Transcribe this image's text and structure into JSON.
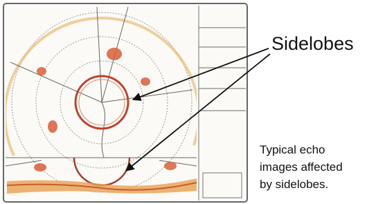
{
  "callout": {
    "label": "Sidelobes"
  },
  "caption": {
    "lines": [
      "Typical echo",
      "images affected",
      "by sidelobes."
    ]
  }
}
